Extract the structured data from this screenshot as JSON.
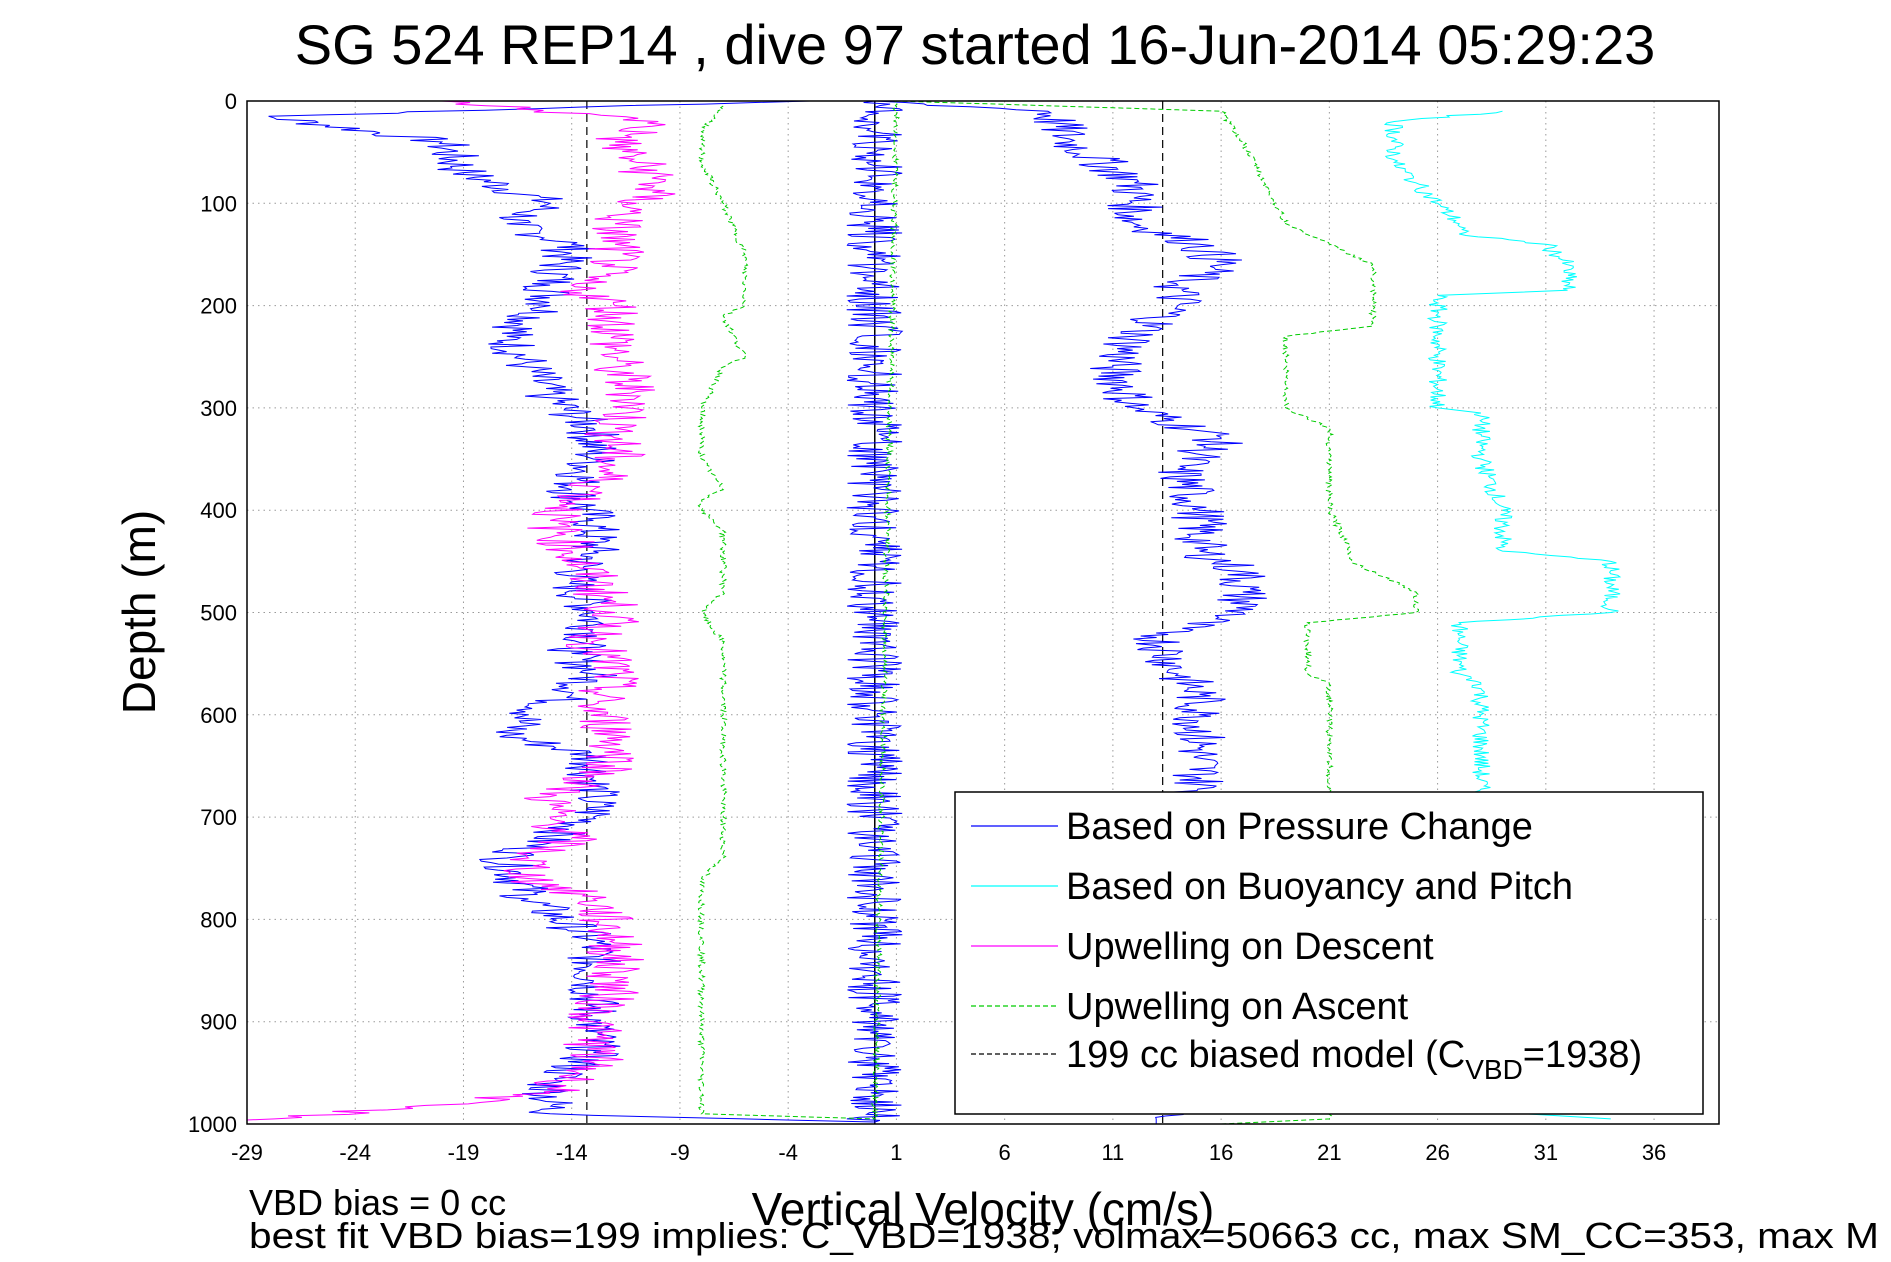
{
  "chart_data": {
    "type": "line",
    "title": "SG 524   REP14  , dive 97 started 16-Jun-2014 05:29:23",
    "xlabel": "Vertical Velocity (cm/s)",
    "ylabel": "Depth (m)",
    "xlim": [
      -29,
      39
    ],
    "ylim": [
      1000,
      0
    ],
    "y_reversed": true,
    "grid": true,
    "xticks": [
      -29,
      -24,
      -19,
      -14,
      -9,
      -4,
      1,
      6,
      11,
      16,
      21,
      26,
      31,
      36
    ],
    "yticks": [
      0,
      100,
      200,
      300,
      400,
      500,
      600,
      700,
      800,
      900,
      1000
    ],
    "legend_position": "bottom-right",
    "reference_lines": [
      {
        "x": 0,
        "style": "solid",
        "color": "#000000"
      },
      {
        "x": -13.3,
        "style": "dashed",
        "color": "#000000"
      },
      {
        "x": 13.3,
        "style": "dashed",
        "color": "#000000"
      }
    ],
    "series": [
      {
        "name": "Based on Pressure Change",
        "color": "#0000ff",
        "style": "solid",
        "x": [
          -3,
          -28,
          -20,
          -19,
          -15,
          -17,
          -14,
          -15,
          -15,
          -17,
          -16,
          -15,
          -13,
          -13,
          -14,
          -13,
          -13,
          -14,
          -13,
          -13,
          -14,
          -13,
          -14,
          -16,
          -17,
          -13,
          -13,
          -13,
          -13,
          -17,
          -16,
          -13,
          -13,
          -13,
          -13,
          -15,
          -15,
          0,
          0,
          8,
          9,
          12,
          12,
          15,
          16,
          14,
          14,
          12,
          11,
          12,
          16,
          14,
          15,
          15,
          17,
          17,
          17,
          13,
          14,
          15,
          15,
          15,
          15,
          15,
          15,
          15,
          15,
          14,
          14,
          14,
          14,
          14,
          13,
          13
        ],
        "y": [
          0,
          15,
          40,
          70,
          100,
          120,
          140,
          180,
          200,
          230,
          260,
          290,
          320,
          350,
          380,
          410,
          440,
          470,
          500,
          520,
          540,
          560,
          580,
          600,
          620,
          640,
          660,
          680,
          700,
          740,
          780,
          820,
          860,
          900,
          930,
          960,
          990,
          998,
          0,
          10,
          40,
          80,
          120,
          140,
          160,
          180,
          200,
          230,
          260,
          300,
          330,
          360,
          400,
          440,
          460,
          480,
          500,
          520,
          560,
          580,
          600,
          640,
          680,
          720,
          760,
          800,
          840,
          880,
          920,
          950,
          970,
          985,
          995,
          1000
        ]
      },
      {
        "name": "Based on Buoyancy and Pitch",
        "color": "#00ffff",
        "style": "solid",
        "x": [
          29,
          24,
          24,
          25,
          26,
          27,
          27,
          31,
          32,
          32,
          26,
          26,
          26,
          26,
          28,
          28,
          29,
          29,
          34,
          34,
          27,
          27,
          28,
          28,
          28,
          28,
          28,
          28,
          28,
          28,
          28,
          28,
          28,
          28,
          30,
          34
        ],
        "y": [
          10,
          20,
          60,
          80,
          100,
          120,
          130,
          140,
          160,
          185,
          190,
          220,
          250,
          300,
          305,
          350,
          400,
          440,
          450,
          500,
          510,
          560,
          570,
          600,
          640,
          680,
          720,
          760,
          800,
          840,
          880,
          920,
          960,
          980,
          990,
          995
        ]
      },
      {
        "name": "Upwelling on Descent",
        "color": "#ff00ff",
        "style": "solid",
        "x": [
          -20,
          -10,
          -12,
          -11,
          -10,
          -11,
          -12,
          -12,
          -12,
          -14,
          -12,
          -12,
          -12,
          -11,
          -12,
          -12,
          -13,
          -15,
          -14,
          -13,
          -12,
          -13,
          -12,
          -13,
          -12,
          -12,
          -15,
          -15,
          -14,
          -16,
          -16,
          -13,
          -12,
          -12,
          -13,
          -13,
          -15,
          -29
        ],
        "y": [
          0,
          20,
          40,
          60,
          80,
          100,
          120,
          140,
          160,
          180,
          200,
          230,
          260,
          290,
          320,
          350,
          380,
          410,
          440,
          470,
          500,
          530,
          560,
          590,
          620,
          650,
          680,
          700,
          720,
          740,
          760,
          780,
          820,
          860,
          900,
          940,
          970,
          998
        ]
      },
      {
        "name": "Upwelling on Ascent",
        "color": "#00cc00",
        "style": "dashed",
        "x": [
          -7,
          -8,
          -8,
          -7,
          -6,
          -6,
          -6,
          -7,
          -6,
          -7,
          -8,
          -8,
          -8,
          -7,
          -8,
          -8,
          -7,
          -7,
          -7,
          -8,
          -7,
          -7,
          -7,
          -7,
          -7,
          -7,
          -7,
          -7,
          -8,
          -8,
          -8,
          -8,
          -8,
          0,
          1,
          16,
          17,
          18,
          19,
          21,
          23,
          23,
          23,
          23,
          19,
          19,
          19,
          19,
          19,
          21,
          21,
          21,
          22,
          22,
          25,
          25,
          20,
          20,
          21,
          21,
          21,
          21,
          21,
          21,
          21,
          21,
          21,
          21,
          21,
          21,
          21,
          16
        ],
        "y": [
          5,
          30,
          60,
          100,
          150,
          180,
          200,
          210,
          250,
          260,
          300,
          330,
          350,
          380,
          390,
          400,
          420,
          450,
          480,
          500,
          530,
          560,
          580,
          600,
          640,
          680,
          700,
          740,
          760,
          800,
          850,
          900,
          990,
          995,
          0,
          10,
          40,
          80,
          120,
          140,
          160,
          180,
          200,
          220,
          230,
          250,
          270,
          290,
          300,
          320,
          360,
          400,
          440,
          450,
          480,
          500,
          510,
          560,
          570,
          600,
          640,
          680,
          720,
          760,
          800,
          840,
          880,
          920,
          960,
          980,
          995,
          1000
        ]
      }
    ],
    "legend": [
      {
        "label": "Based on Pressure Change",
        "color": "#0000ff",
        "style": "solid"
      },
      {
        "label": "Based on Buoyancy and Pitch",
        "color": "#00ffff",
        "style": "solid"
      },
      {
        "label": "Upwelling on Descent",
        "color": "#ff00ff",
        "style": "solid"
      },
      {
        "label": "Upwelling on Ascent",
        "color": "#00cc00",
        "style": "dashed"
      },
      {
        "label": "199 cc biased model (C",
        "label_sub": "VBD",
        "label_tail": "=1938)",
        "color": "#000000",
        "style": "dashed"
      }
    ],
    "footer": [
      "VBD bias = 0 cc",
      "best fit VBD bias=199 implies: C_VBD=1938; volmax=50663 cc, max SM_CC=353, max M"
    ]
  }
}
